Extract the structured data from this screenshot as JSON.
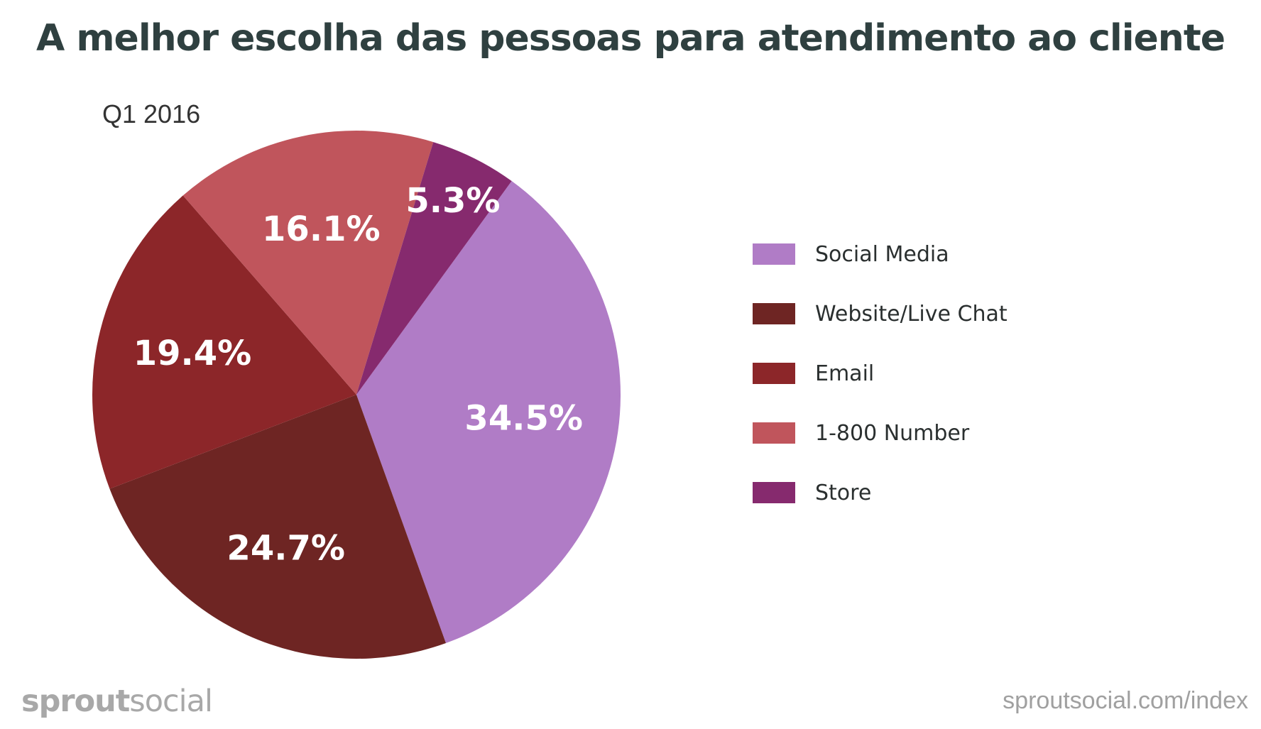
{
  "header": {
    "title": "A melhor escolha das pessoas para atendimento ao cliente",
    "subtitle": "Q1 2016"
  },
  "chart_data": {
    "type": "pie",
    "title": "A melhor escolha das pessoas para atendimento ao cliente",
    "subtitle": "Q1 2016",
    "categories": [
      "Social Media",
      "Website/Live Chat",
      "Email",
      "1-800 Number",
      "Store"
    ],
    "values": [
      34.5,
      24.7,
      19.4,
      16.1,
      5.3
    ],
    "value_labels": [
      "34.5%",
      "24.7%",
      "19.4%",
      "16.1%",
      "5.3%"
    ],
    "colors": [
      "#b07cc6",
      "#6e2523",
      "#8c2629",
      "#c0555c",
      "#862a6e"
    ],
    "legend_position": "right",
    "start_angle_deg": 36,
    "direction": "clockwise"
  },
  "footer": {
    "brand_bold": "sprout",
    "brand_light": "social",
    "url": "sproutsocial.com/index"
  }
}
